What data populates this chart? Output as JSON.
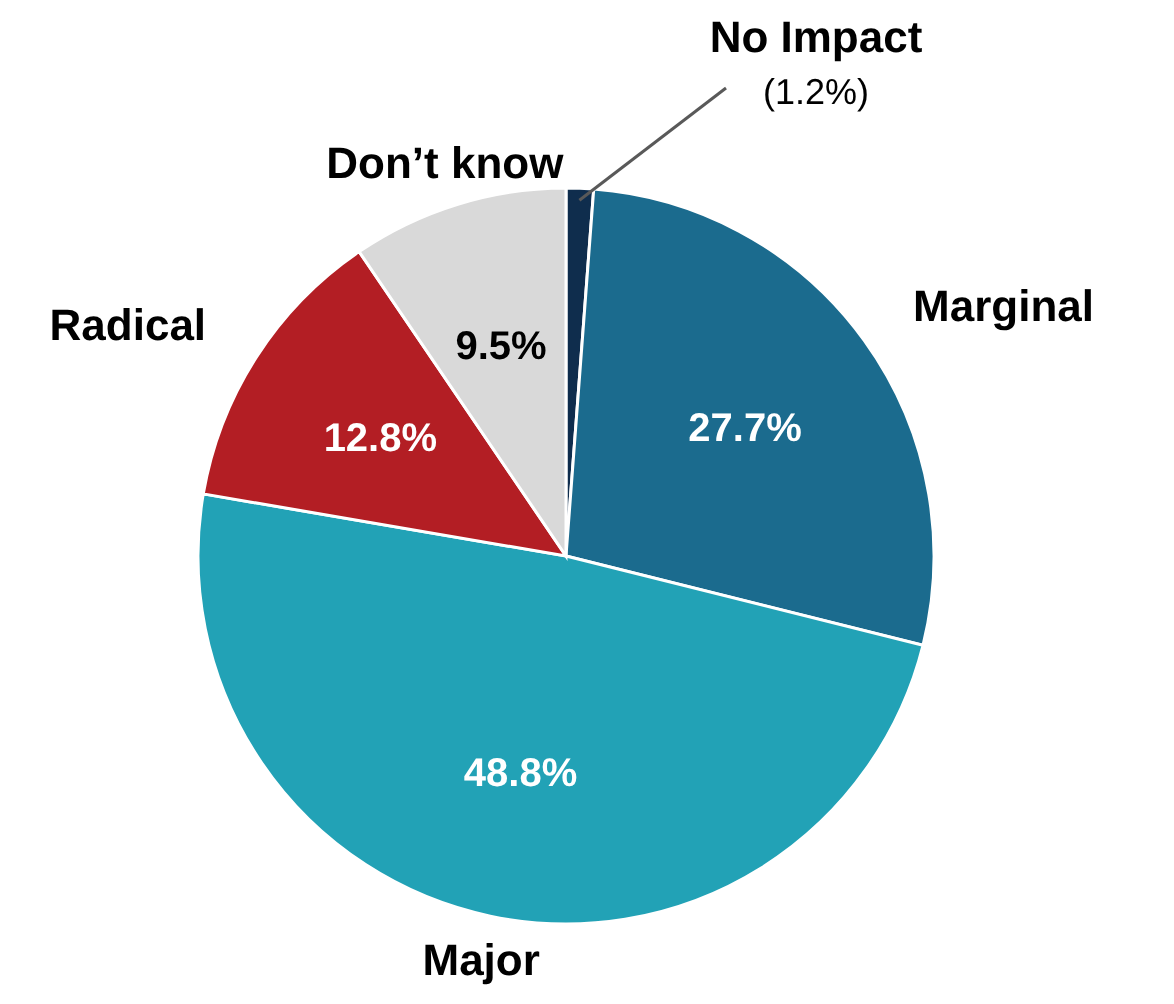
{
  "chart_data": {
    "type": "pie",
    "categories": [
      "No Impact",
      "Marginal",
      "Major",
      "Radical",
      "Don’t know"
    ],
    "values": [
      1.2,
      27.7,
      48.8,
      12.8,
      9.5
    ],
    "colors": [
      "#0f2d4d",
      "#1b6b8e",
      "#22a2b6",
      "#b31e24",
      "#d9d9d9"
    ],
    "value_labels": [
      "(1.2%)",
      "27.7%",
      "48.8%",
      "12.8%",
      "9.5%"
    ]
  }
}
